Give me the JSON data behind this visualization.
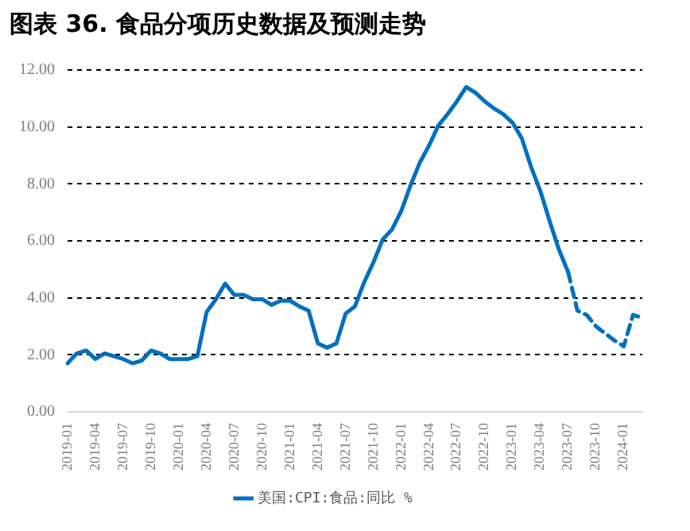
{
  "chart_data": {
    "type": "line",
    "title": "图表 36. 食品分项历史数据及预测走势",
    "categories": [
      "2019-01",
      null,
      null,
      "2019-04",
      null,
      null,
      "2019-07",
      null,
      null,
      "2019-10",
      null,
      null,
      "2020-01",
      null,
      null,
      "2020-04",
      null,
      null,
      "2020-07",
      null,
      null,
      "2020-10",
      null,
      null,
      "2021-01",
      null,
      null,
      "2021-04",
      null,
      null,
      "2021-07",
      null,
      null,
      "2021-10",
      null,
      null,
      "2022-01",
      null,
      null,
      "2022-04",
      null,
      null,
      "2022-07",
      null,
      null,
      "2022-10",
      null,
      null,
      "2023-01",
      null,
      null,
      "2023-04",
      null,
      null,
      "2023-07",
      null,
      null,
      "2023-10",
      null,
      null,
      "2024-01",
      null,
      null
    ],
    "series": [
      {
        "name": "美国:CPI:食品:同比 %",
        "color": "#0070c0",
        "line_style": "solid",
        "values": [
          1.7,
          2.05,
          2.15,
          1.85,
          2.05,
          1.95,
          1.85,
          1.7,
          1.8,
          2.15,
          2.05,
          1.85,
          1.85,
          1.85,
          1.95,
          3.5,
          3.95,
          4.5,
          4.1,
          4.1,
          3.95,
          3.95,
          3.75,
          3.9,
          3.9,
          3.7,
          3.55,
          2.4,
          2.25,
          2.4,
          3.45,
          3.7,
          4.55,
          5.25,
          6.05,
          6.4,
          7.05,
          7.95,
          8.75,
          9.35,
          10.05,
          10.45,
          10.9,
          11.4,
          11.2,
          10.9,
          10.65,
          10.45,
          10.15,
          9.6,
          8.6,
          7.75,
          6.7,
          5.7,
          4.9,
          null,
          null,
          null,
          null,
          null,
          null,
          null,
          null
        ]
      },
      {
        "color": "#0070c0",
        "line_style": "dashed",
        "values": [
          null,
          null,
          null,
          null,
          null,
          null,
          null,
          null,
          null,
          null,
          null,
          null,
          null,
          null,
          null,
          null,
          null,
          null,
          null,
          null,
          null,
          null,
          null,
          null,
          null,
          null,
          null,
          null,
          null,
          null,
          null,
          null,
          null,
          null,
          null,
          null,
          null,
          null,
          null,
          null,
          null,
          null,
          null,
          null,
          null,
          null,
          null,
          null,
          null,
          null,
          null,
          null,
          null,
          null,
          4.9,
          3.55,
          3.4,
          3.0,
          2.75,
          2.5,
          2.3,
          3.4,
          3.3
        ]
      }
    ],
    "ylim": [
      0,
      12
    ],
    "yticks": [
      {
        "value": 0,
        "label": "0.00"
      },
      {
        "value": 2,
        "label": "2.00"
      },
      {
        "value": 4,
        "label": "4.00"
      },
      {
        "value": 6,
        "label": "6.00"
      },
      {
        "value": 8,
        "label": "8.00"
      },
      {
        "value": 10,
        "label": "10.00"
      },
      {
        "value": 12,
        "label": "12.00"
      }
    ],
    "grid": "y",
    "legend": "bottom",
    "marker": "none"
  }
}
